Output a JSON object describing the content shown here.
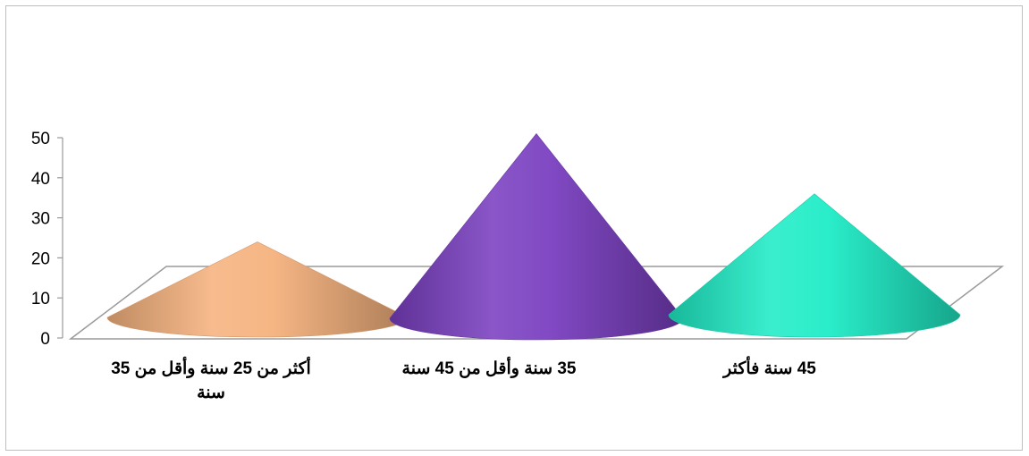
{
  "chart_data": {
    "type": "bar",
    "shape": "cone",
    "categories": [
      "أكثر من 25 سنة وأقل من 35 سنة",
      "35 سنة وأقل من 45 سنة",
      "45 سنة فأكثر"
    ],
    "category_lines": [
      [
        "أكثر من 25 سنة وأقل من 35",
        "سنة"
      ],
      [
        "35 سنة وأقل من 45 سنة"
      ],
      [
        "45 سنة فأكثر"
      ]
    ],
    "values": [
      24,
      51,
      36
    ],
    "colors": [
      "#f6b27e",
      "#7a3fc0",
      "#1fecc6"
    ],
    "ylim": [
      0,
      50
    ],
    "yticks": [
      0,
      10,
      20,
      30,
      40,
      50
    ],
    "title": "",
    "xlabel": "",
    "ylabel": "",
    "grid": false,
    "legend": "none"
  }
}
